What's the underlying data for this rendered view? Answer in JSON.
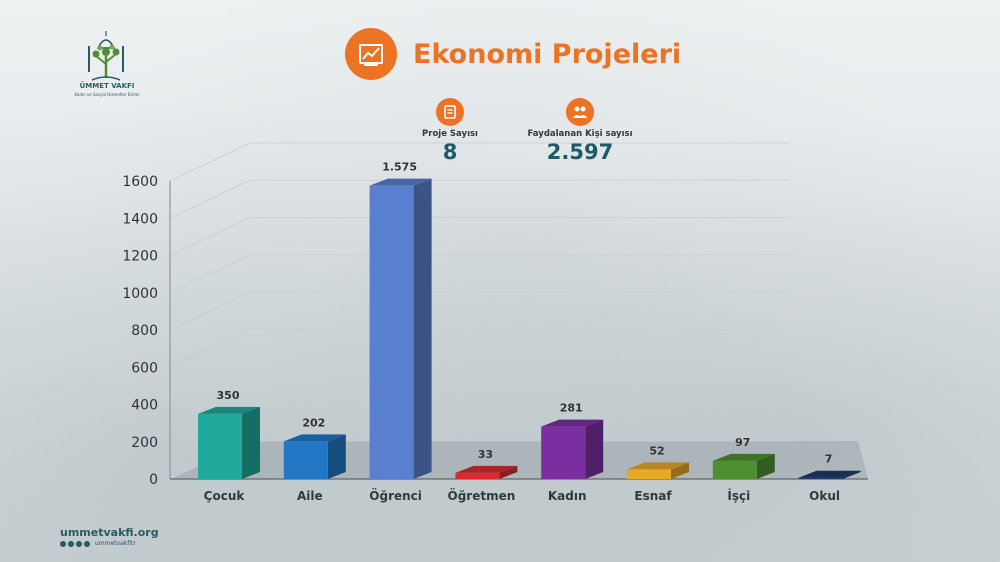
{
  "logo": {
    "name": "ÜMMET VAKFI",
    "tagline": "Kadın ve Sosyal Hizmetler Birimi"
  },
  "title": "Ekonomi Projeleri",
  "stats": {
    "projects": {
      "label": "Proje Sayısı",
      "value": "8"
    },
    "beneficiaries": {
      "label": "Faydalanan Kişi sayısı",
      "value": "2.597"
    }
  },
  "footer": {
    "url": "ummetvakfi.org",
    "handle": "ummetvakfitr"
  },
  "colors": {
    "accent": "#ec7324",
    "dark_teal": "#1d5966"
  },
  "chart_data": {
    "type": "bar",
    "categories": [
      "Çocuk",
      "Aile",
      "Öğrenci",
      "Öğretmen",
      "Kadın",
      "Esnaf",
      "İşçi",
      "Okul"
    ],
    "values": [
      350,
      202,
      1575,
      33,
      281,
      52,
      97,
      7
    ],
    "value_labels": [
      "350",
      "202",
      "1.575",
      "33",
      "281",
      "52",
      "97",
      "7"
    ],
    "bar_colors": [
      "#20a99a",
      "#2277c4",
      "#5a7fd0",
      "#d62e2e",
      "#7a2ea0",
      "#e8a82a",
      "#4e8f31",
      "#1d3a6b"
    ],
    "ylim": [
      0,
      1600
    ],
    "yticks": [
      0,
      200,
      400,
      600,
      800,
      1000,
      1200,
      1400,
      1600
    ],
    "style": "3d"
  }
}
